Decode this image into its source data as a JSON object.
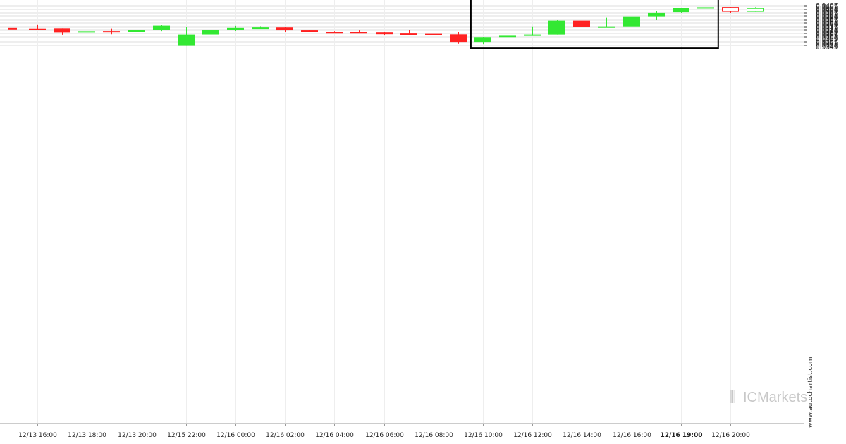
{
  "chart_data": {
    "type": "candlestick",
    "ylim": [
      0.9348,
      0.9407
    ],
    "y_ticks": [
      "0.9407",
      "0.9405",
      "0.9403",
      "0.9401",
      "0.9399",
      "0.9397",
      "0.9395",
      "0.9393",
      "0.9391",
      "0.9389",
      "0.9387",
      "0.9385",
      "0.9383",
      "0.9381",
      "0.9379",
      "0.9377",
      "0.9375",
      "0.9373",
      "0.9371",
      "0.9369",
      "0.9367",
      "0.9365",
      "0.9363",
      "0.9361",
      "0.9359",
      "0.9357",
      "0.9355",
      "0.9353",
      "0.9351",
      "0.9349"
    ],
    "x_labels": [
      {
        "i": 1,
        "label": "12/13 16:00"
      },
      {
        "i": 3,
        "label": "12/13 18:00"
      },
      {
        "i": 5,
        "label": "12/13 20:00"
      },
      {
        "i": 7,
        "label": "12/15 22:00"
      },
      {
        "i": 9,
        "label": "12/16 00:00"
      },
      {
        "i": 11,
        "label": "12/16 02:00"
      },
      {
        "i": 13,
        "label": "12/16 04:00"
      },
      {
        "i": 15,
        "label": "12/16 06:00"
      },
      {
        "i": 17,
        "label": "12/16 08:00"
      },
      {
        "i": 19,
        "label": "12/16 10:00"
      },
      {
        "i": 21,
        "label": "12/16 12:00"
      },
      {
        "i": 23,
        "label": "12/16 14:00"
      },
      {
        "i": 25,
        "label": "12/16 16:00"
      },
      {
        "i": 27,
        "label": "12/16 19:00",
        "bold": true
      },
      {
        "i": 29,
        "label": "12/16 20:00"
      }
    ],
    "candles": [
      {
        "o": 0.93745,
        "h": 0.93745,
        "l": 0.93735,
        "c": 0.93735
      },
      {
        "o": 0.93736,
        "h": 0.93794,
        "l": 0.93722,
        "c": 0.93731
      },
      {
        "o": 0.9374,
        "h": 0.9374,
        "l": 0.93656,
        "c": 0.9368
      },
      {
        "o": 0.93682,
        "h": 0.93725,
        "l": 0.93662,
        "c": 0.937
      },
      {
        "o": 0.93702,
        "h": 0.93737,
        "l": 0.93662,
        "c": 0.93696
      },
      {
        "o": 0.93692,
        "h": 0.9372,
        "l": 0.93692,
        "c": 0.93716
      },
      {
        "o": 0.93716,
        "h": 0.93785,
        "l": 0.93702,
        "c": 0.93777
      },
      {
        "o": 0.935,
        "h": 0.9376,
        "l": 0.935,
        "c": 0.93658
      },
      {
        "o": 0.93659,
        "h": 0.93752,
        "l": 0.9365,
        "c": 0.93721
      },
      {
        "o": 0.93721,
        "h": 0.93774,
        "l": 0.93704,
        "c": 0.93745
      },
      {
        "o": 0.93748,
        "h": 0.93768,
        "l": 0.93735,
        "c": 0.93752
      },
      {
        "o": 0.93751,
        "h": 0.93759,
        "l": 0.93693,
        "c": 0.93713
      },
      {
        "o": 0.93713,
        "h": 0.93715,
        "l": 0.93684,
        "c": 0.93691
      },
      {
        "o": 0.93691,
        "h": 0.93701,
        "l": 0.93675,
        "c": 0.93688
      },
      {
        "o": 0.93691,
        "h": 0.93712,
        "l": 0.93674,
        "c": 0.93684
      },
      {
        "o": 0.93682,
        "h": 0.93691,
        "l": 0.93651,
        "c": 0.93671
      },
      {
        "o": 0.93673,
        "h": 0.9372,
        "l": 0.93644,
        "c": 0.93671
      },
      {
        "o": 0.93668,
        "h": 0.93702,
        "l": 0.93581,
        "c": 0.93648
      },
      {
        "o": 0.93661,
        "h": 0.93693,
        "l": 0.93528,
        "c": 0.93544
      },
      {
        "o": 0.93544,
        "h": 0.93619,
        "l": 0.93514,
        "c": 0.93612
      },
      {
        "o": 0.93612,
        "h": 0.93642,
        "l": 0.93571,
        "c": 0.9364
      },
      {
        "o": 0.93638,
        "h": 0.93766,
        "l": 0.93638,
        "c": 0.93658
      },
      {
        "o": 0.93658,
        "h": 0.93854,
        "l": 0.93658,
        "c": 0.93846
      },
      {
        "o": 0.93846,
        "h": 0.93848,
        "l": 0.93666,
        "c": 0.93755
      },
      {
        "o": 0.93754,
        "h": 0.93895,
        "l": 0.93751,
        "c": 0.93766
      },
      {
        "o": 0.93766,
        "h": 0.93918,
        "l": 0.93762,
        "c": 0.93905
      },
      {
        "o": 0.93906,
        "h": 0.93988,
        "l": 0.9386,
        "c": 0.93962
      },
      {
        "o": 0.9397,
        "h": 0.94031,
        "l": 0.9396,
        "c": 0.94022
      },
      {
        "o": 0.94026,
        "h": 0.94036,
        "l": 0.94015,
        "c": 0.94036
      },
      {
        "o": 0.94039,
        "h": 0.94039,
        "l": 0.93959,
        "c": 0.93975,
        "hollow": true
      },
      {
        "o": 0.93975,
        "h": 0.94036,
        "l": 0.93975,
        "c": 0.94023,
        "hollow": true
      }
    ],
    "highlight": {
      "from_index": 19,
      "to_index": 28
    },
    "marker_index": 28,
    "colors": {
      "up": "#33e833",
      "down": "#ff2222",
      "box": "#000000",
      "grid": "#eeeeee",
      "marker": "#999999"
    }
  },
  "watermark": {
    "brand_prefix": "IC",
    "brand_suffix": "Markets",
    "site": "www.autochartist.com"
  }
}
